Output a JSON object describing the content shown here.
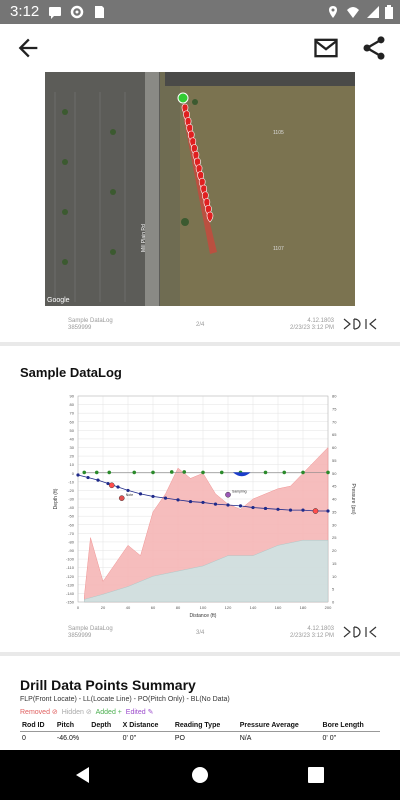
{
  "status_bar": {
    "time": "3:12",
    "icons": [
      "message-icon",
      "sd-card-icon",
      "settings-icon",
      "sim-icon",
      "location-icon",
      "wifi-icon",
      "battery-icon"
    ]
  },
  "app_bar": {
    "back": "arrow-back-icon",
    "email": "email-icon",
    "share": "share-icon"
  },
  "map_page": {
    "map_label_road": "Mill Plain Rd",
    "map_label_1": "1105",
    "map_label_2": "1107",
    "google": "Google",
    "footer_left_1": "Sample DataLog",
    "footer_left_2": "3859999",
    "footer_center": "2/4",
    "footer_right_1": "4.12.1803",
    "footer_right_2": "2/23/23 3:12 PM"
  },
  "chart_page": {
    "title": "Sample DataLog",
    "footer_left_1": "Sample DataLog",
    "footer_left_2": "3859999",
    "footer_center": "3/4",
    "footer_right_1": "4.12.1803",
    "footer_right_2": "2/23/23 3:12 PM",
    "ann_1": "Note",
    "ann_2": "Sampling"
  },
  "summary_page": {
    "title": "Drill Data Points Summary",
    "legend": "FLP(Front Locate) - LL(Locate Line) - PO(Pitch Only) - BL(No Data)",
    "flags": {
      "removed": "Removed",
      "hidden": "Hidden",
      "added": "Added",
      "edited": "Edited"
    },
    "columns": [
      "Rod ID",
      "Pitch",
      "Depth",
      "X Distance",
      "Reading Type",
      "Pressure Average",
      "Bore Length"
    ],
    "rows": [
      [
        "0",
        "-46.0%",
        "",
        "0' 0\"",
        "PO",
        "N/A",
        "0' 0\""
      ]
    ]
  },
  "chart_data": {
    "type": "line",
    "xlabel": "Distance (ft)",
    "ylabel": "Depth (ft)",
    "y2label": "Pressure (psi)",
    "x_ticks": [
      "0",
      "20",
      "40",
      "60",
      "80",
      "100",
      "120",
      "140",
      "160",
      "180",
      "200"
    ],
    "y_ticks": [
      "90",
      "80",
      "70",
      "60",
      "50",
      "40",
      "30",
      "20",
      "10",
      "0",
      "-10",
      "-20",
      "-30",
      "-40",
      "-50",
      "-60",
      "-70",
      "-80",
      "-90",
      "-100",
      "-110",
      "-120",
      "-130",
      "-140",
      "-150"
    ],
    "y2_ticks": [
      "80",
      "75",
      "70",
      "65",
      "60",
      "55",
      "50",
      "45",
      "40",
      "35",
      "30",
      "25",
      "20",
      "15",
      "10",
      "5",
      "0"
    ],
    "xlim": [
      0,
      200
    ],
    "ylim": [
      -150,
      90
    ],
    "y2lim": [
      0,
      80
    ],
    "series": [
      {
        "name": "",
        "kind": "line",
        "color": "#1f2a8a",
        "x": [
          0,
          8,
          16,
          24,
          32,
          40,
          50,
          60,
          70,
          80,
          90,
          100,
          110,
          120,
          130,
          140,
          150,
          160,
          170,
          180,
          190,
          200
        ],
        "y": [
          -2,
          -5,
          -8,
          -12,
          -16,
          -20,
          -24,
          -27,
          -29,
          -31,
          -33,
          -34,
          -36,
          -37,
          -38,
          -40,
          -41,
          -42,
          -43,
          -43,
          -44,
          -44
        ]
      },
      {
        "name": "",
        "kind": "locate",
        "color": "#2a8a2a",
        "x": [
          5,
          15,
          25,
          45,
          60,
          75,
          85,
          100,
          115,
          130,
          150,
          165,
          180,
          200
        ],
        "y": [
          1,
          1,
          1,
          1,
          1,
          1.5,
          1.5,
          1,
          1,
          1,
          1,
          1,
          1,
          1
        ]
      },
      {
        "name": "",
        "kind": "pressure_max",
        "color": "#f6b6b6",
        "x": [
          5,
          10,
          20,
          30,
          40,
          50,
          60,
          70,
          80,
          90,
          100,
          110,
          120,
          130,
          140,
          150,
          160,
          170,
          180,
          190,
          200
        ],
        "y": [
          2,
          25,
          8,
          15,
          22,
          18,
          35,
          42,
          52,
          48,
          50,
          42,
          38,
          36,
          40,
          42,
          44,
          45,
          50,
          55,
          60
        ]
      },
      {
        "name": "",
        "kind": "pressure_avg",
        "color": "#cfe3e3",
        "x": [
          5,
          20,
          40,
          60,
          80,
          100,
          120,
          140,
          160,
          180,
          200
        ],
        "y": [
          1,
          3,
          6,
          10,
          12,
          14,
          18,
          18,
          22,
          24,
          24
        ]
      }
    ],
    "markers": [
      {
        "label": "Note",
        "x": 35,
        "y": -29,
        "color": "#e05050"
      },
      {
        "label": "Sampling",
        "x": 120,
        "y": -25,
        "color": "#9b59b6"
      },
      {
        "label": "",
        "x": 27,
        "y": -14,
        "color": "#ff4d4d"
      },
      {
        "label": "",
        "x": 190,
        "y": -44,
        "color": "#ff4d4d"
      }
    ],
    "grid": true
  }
}
